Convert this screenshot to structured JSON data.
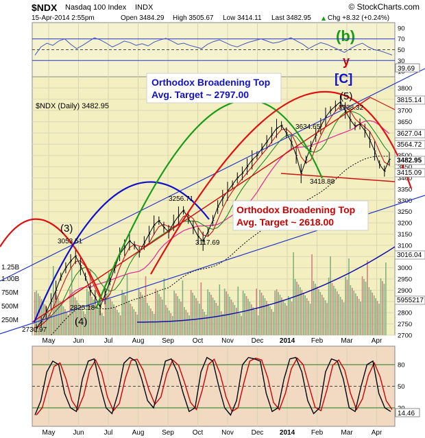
{
  "header": {
    "symbol": "$NDX",
    "name": "Nasdaq 100 Index",
    "exchange": "INDX",
    "source": "© StockCharts.com",
    "date": "15-Apr-2014 2:55pm",
    "open": "Open 3484.29",
    "high": "High 3505.67",
    "low": "Low 3414.11",
    "last": "Last 3482.95",
    "chg": "Chg +8.32 (+0.24%)",
    "chg_arrow": "▲"
  },
  "colors": {
    "panel_bg": "#f3efc0",
    "bottom_bg": "#f2d9c2",
    "price_line": "#000000",
    "ma_pink": "#e0339e",
    "ma_red": "#cc1111",
    "ma_green": "#228822",
    "rsi_line": "#4455bb",
    "arc_red": "#e01010",
    "arc_green": "#1a9a1a",
    "arc_blue": "#1010cc",
    "annotation_blue": "#1010cc",
    "annotation_red": "#cc0000",
    "volume_red": "#d08080",
    "volume_green": "#80b080",
    "trend_blue": "#2233cc"
  },
  "wave_labels": {
    "b": "(b)",
    "y": "y",
    "c": "[C]",
    "five": "(5)",
    "three": "(3)",
    "four": "(4)"
  },
  "annotations": {
    "top_box": [
      "Orthodox Broadening Top",
      "Avg. Target ~ 2797.00"
    ],
    "bottom_box": [
      "Orthodox Broadening Top",
      "Avg. Target ~ 2618.00"
    ]
  },
  "price_legend": "$NDX (Daily) 3482.95",
  "chart_data": [
    {
      "type": "line",
      "panel": "rsi-top",
      "ylim": [
        0,
        100
      ],
      "ticks": [
        10,
        30,
        50,
        70,
        90
      ],
      "reference_lines": [
        30,
        50,
        70
      ],
      "last_value_label": "39.69",
      "values": [
        40,
        55,
        62,
        58,
        66,
        70,
        60,
        52,
        58,
        65,
        72,
        68,
        62,
        55,
        60,
        66,
        63,
        58,
        61,
        57,
        64,
        68,
        71,
        66,
        60,
        62,
        58,
        55,
        52,
        60,
        65,
        68,
        63,
        58,
        55,
        60,
        64,
        67,
        70,
        66,
        62,
        64,
        68,
        72,
        66,
        60,
        52,
        58,
        63,
        60,
        55,
        50,
        45,
        52,
        58,
        62,
        55,
        50,
        48,
        44,
        40
      ]
    },
    {
      "type": "line",
      "panel": "price",
      "ylim": [
        2700,
        3850
      ],
      "ticks": [
        2700,
        2750,
        2800,
        2850,
        2900,
        2950,
        3000,
        3050,
        3100,
        3150,
        3200,
        3250,
        3300,
        3350,
        3400,
        3450,
        3500,
        3550,
        3600,
        3650,
        3700,
        3750,
        3800
      ],
      "x_labels": [
        "May",
        "Jun",
        "Jul",
        "Aug",
        "Sep",
        "Oct",
        "Nov",
        "Dec",
        "2014",
        "Feb",
        "Mar",
        "Apr"
      ],
      "volume_labels": [
        "1.25B",
        "1.00B",
        "750M",
        "500M",
        "250M"
      ],
      "right_labels": [
        "3815.14",
        "3627.04",
        "3564.72",
        "3482.95",
        "3415.09",
        "3016.04",
        "5955217"
      ],
      "price_labels": {
        "p2730": "2730.97",
        "p3053": "3053.51",
        "p2825": "2825.18",
        "p3256": "3256.71",
        "p3117": "3117.69",
        "p3634": "3634.65",
        "p3738": "3738.32",
        "p3418": "3418.88"
      },
      "values": [
        2731,
        2760,
        2800,
        2850,
        2900,
        2960,
        3000,
        3030,
        3053,
        3010,
        2960,
        2900,
        2870,
        2825,
        2880,
        2940,
        3000,
        3060,
        3090,
        3120,
        3100,
        3070,
        3110,
        3150,
        3190,
        3210,
        3180,
        3160,
        3200,
        3230,
        3256,
        3220,
        3180,
        3140,
        3118,
        3160,
        3210,
        3270,
        3310,
        3340,
        3370,
        3400,
        3420,
        3450,
        3480,
        3500,
        3530,
        3560,
        3590,
        3620,
        3634,
        3600,
        3560,
        3500,
        3419,
        3480,
        3540,
        3590,
        3630,
        3670,
        3700,
        3720,
        3738,
        3700,
        3660,
        3630,
        3640,
        3610,
        3570,
        3520,
        3460,
        3430,
        3483
      ]
    },
    {
      "type": "line",
      "panel": "stochastic-bottom",
      "ylim": [
        0,
        100
      ],
      "ticks": [
        20,
        50,
        80
      ],
      "reference_lines": [
        20,
        50,
        80
      ],
      "last_value_label": "14.46",
      "values": [
        10,
        30,
        70,
        85,
        80,
        40,
        20,
        15,
        60,
        85,
        88,
        50,
        20,
        12,
        40,
        82,
        90,
        85,
        60,
        30,
        20,
        50,
        85,
        88,
        70,
        40,
        15,
        20,
        70,
        90,
        85,
        50,
        20,
        10,
        30,
        80,
        90,
        88,
        85,
        40,
        15,
        20,
        60,
        88,
        90,
        70,
        30,
        12,
        20,
        70,
        88,
        85,
        60,
        20,
        15,
        50,
        80,
        85,
        40,
        20,
        15
      ]
    }
  ]
}
